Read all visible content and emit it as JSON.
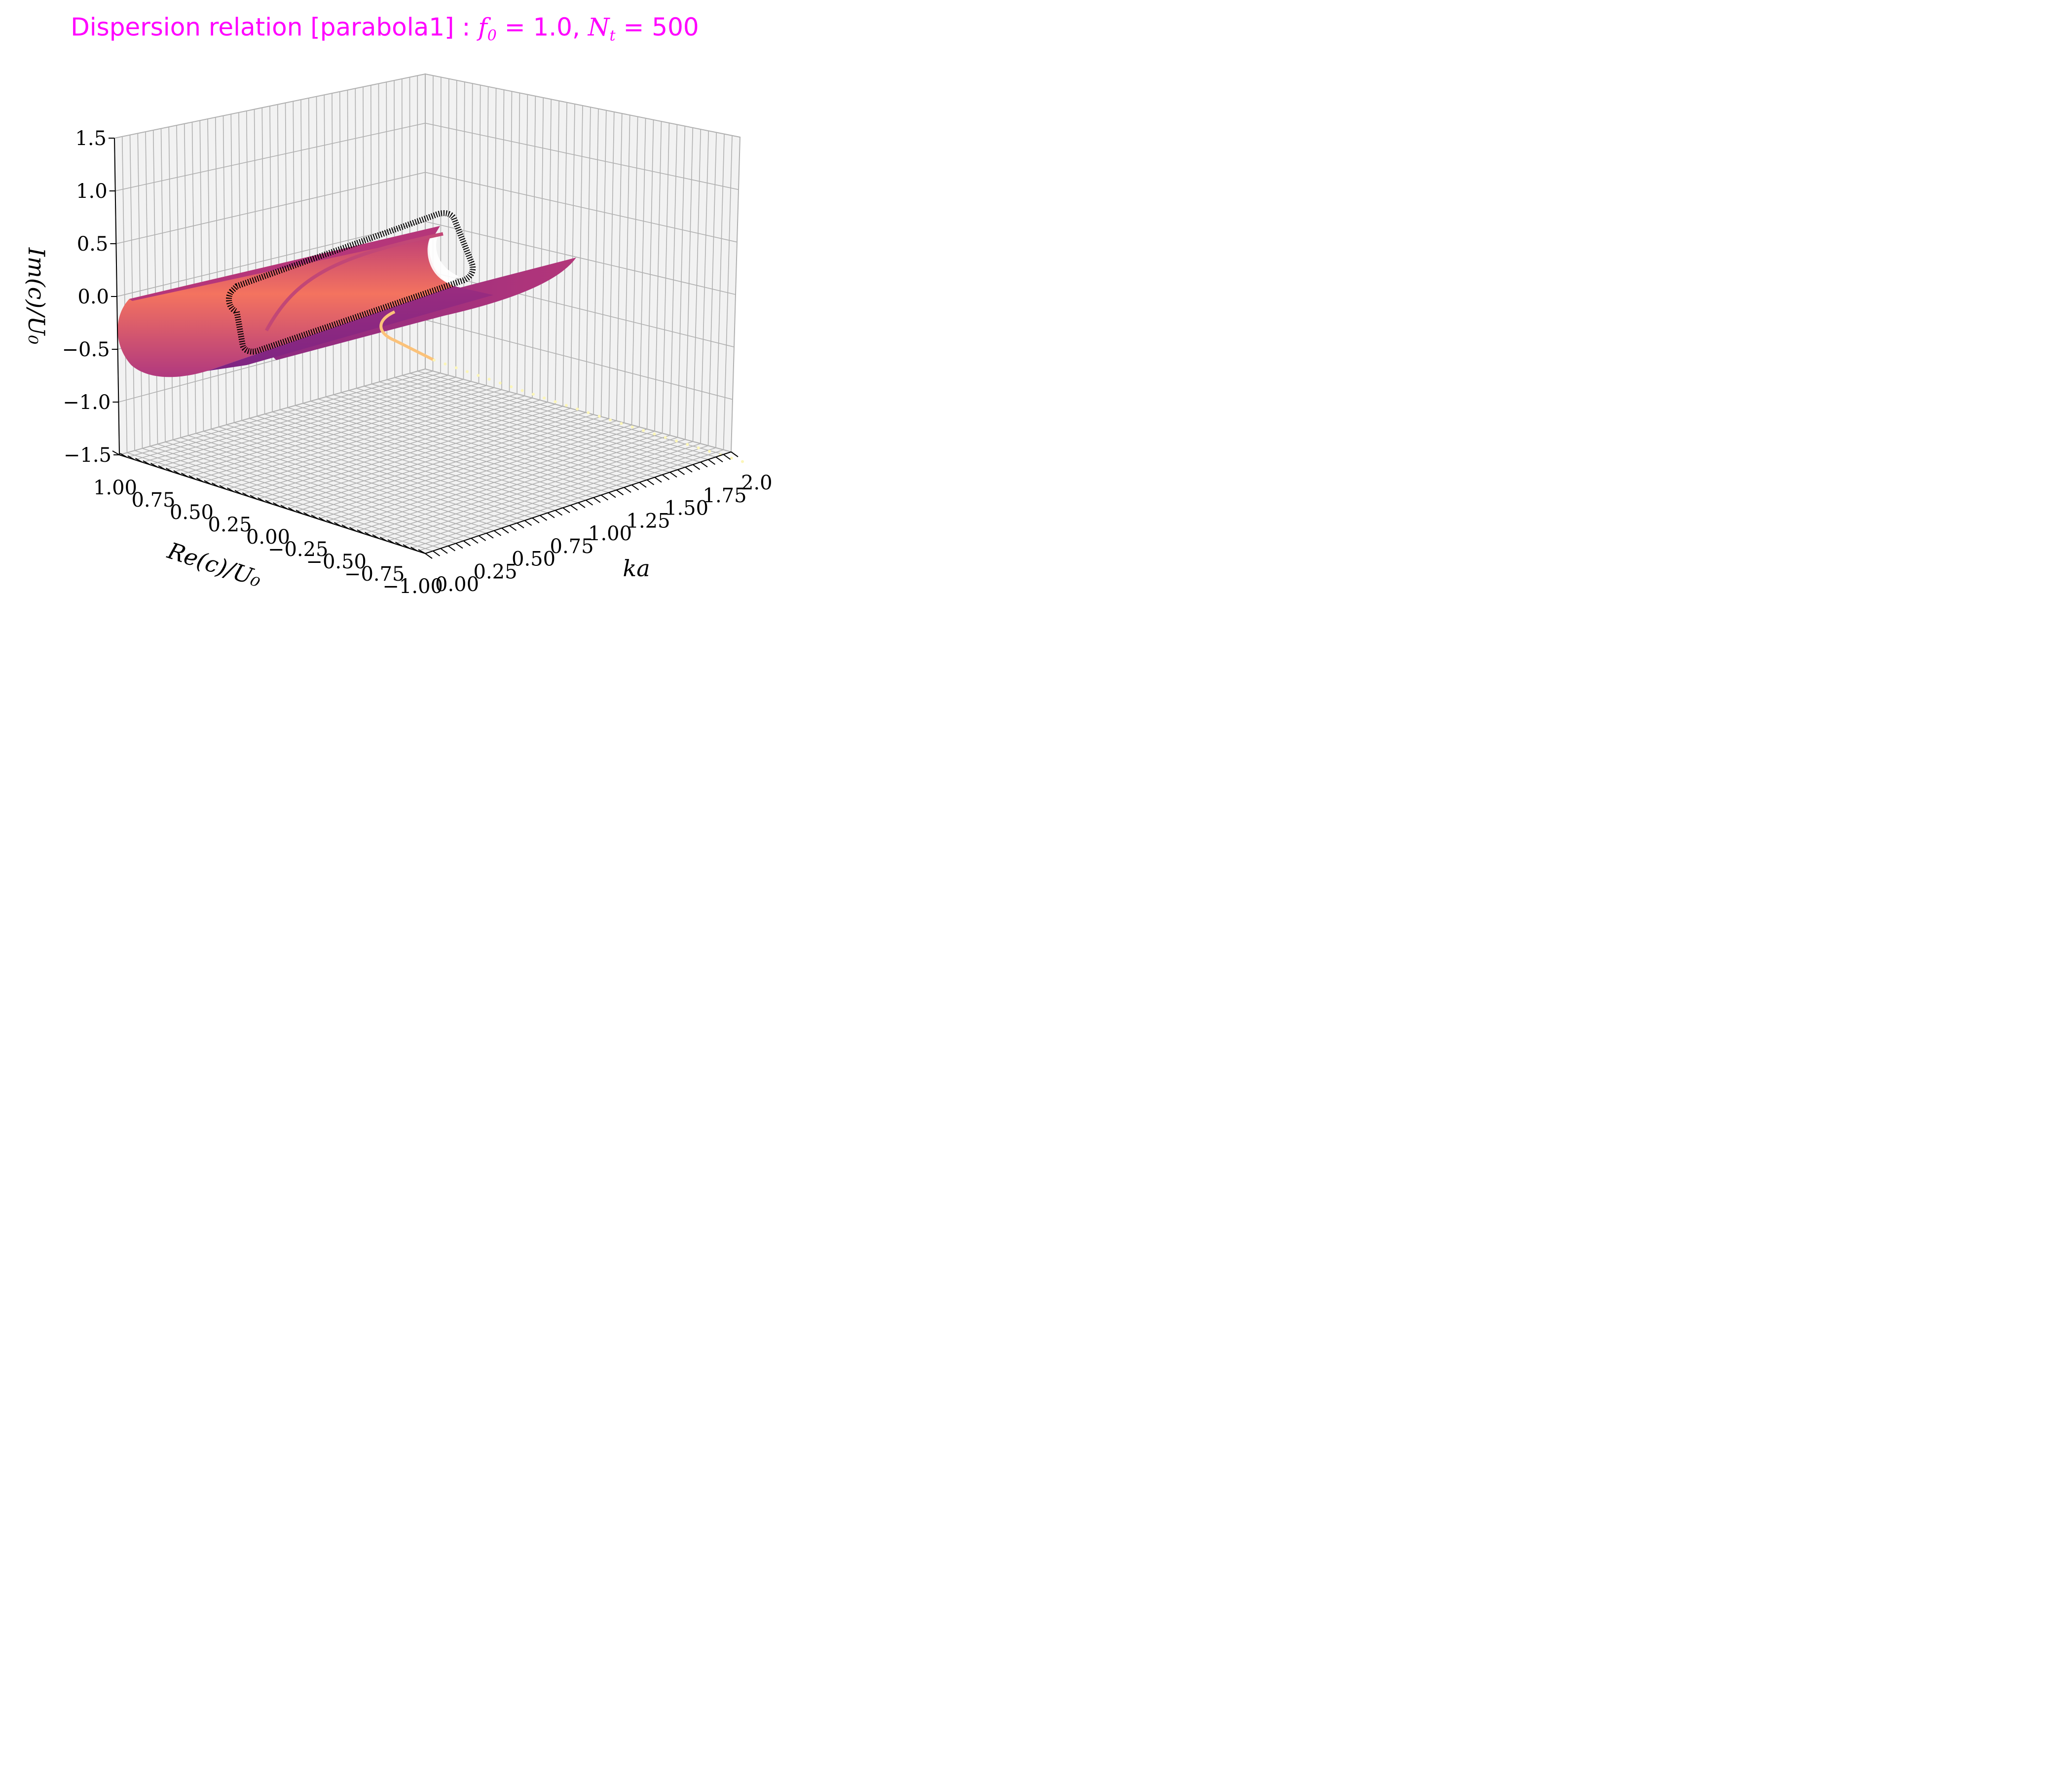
{
  "chart_data": {
    "type": "surface3d",
    "title_prefix": "Dispersion relation [parabola1] : ",
    "title_f0_symbol": "f",
    "title_f0_sub": "0",
    "title_f0_value": " = 1.0, ",
    "title_nt_symbol": "N",
    "title_nt_sub": "t",
    "title_nt_value": " = 500",
    "x_axis": {
      "label": "ka",
      "range": [
        0.0,
        2.0
      ],
      "ticks": [
        "0.00",
        "0.25",
        "0.50",
        "0.75",
        "1.00",
        "1.25",
        "1.50",
        "1.75",
        "2.00"
      ]
    },
    "y_axis": {
      "label": "Re(c)/U₀",
      "range": [
        1.0,
        -1.0
      ],
      "ticks": [
        "1.00",
        "0.75",
        "0.50",
        "0.25",
        "0.00",
        "−0.25",
        "−0.50",
        "−0.75",
        "−1.00"
      ]
    },
    "z_axis": {
      "label": "Im(c)/U₀",
      "range": [
        -1.5,
        1.5
      ],
      "ticks": [
        "−1.5",
        "−1.0",
        "−0.5",
        "0.0",
        "0.5",
        "1.0",
        "1.5"
      ]
    },
    "grid": true,
    "colormap": "magma",
    "colors": {
      "title": "#ff00ff",
      "pane": "#f2f2f2",
      "grid": "#b0b0b0",
      "contour": "#000000"
    },
    "series": [
      {
        "kind": "surface",
        "description_ka_range": [
          0.0,
          1.3
        ],
        "description_rec_range": [
          1.0,
          -1.0
        ]
      },
      {
        "kind": "curve",
        "description_ka_range": [
          0.0,
          2.0
        ]
      },
      {
        "kind": "scatter",
        "description_ka_range": [
          0.0,
          2.0
        ]
      },
      {
        "kind": "contour"
      }
    ]
  }
}
